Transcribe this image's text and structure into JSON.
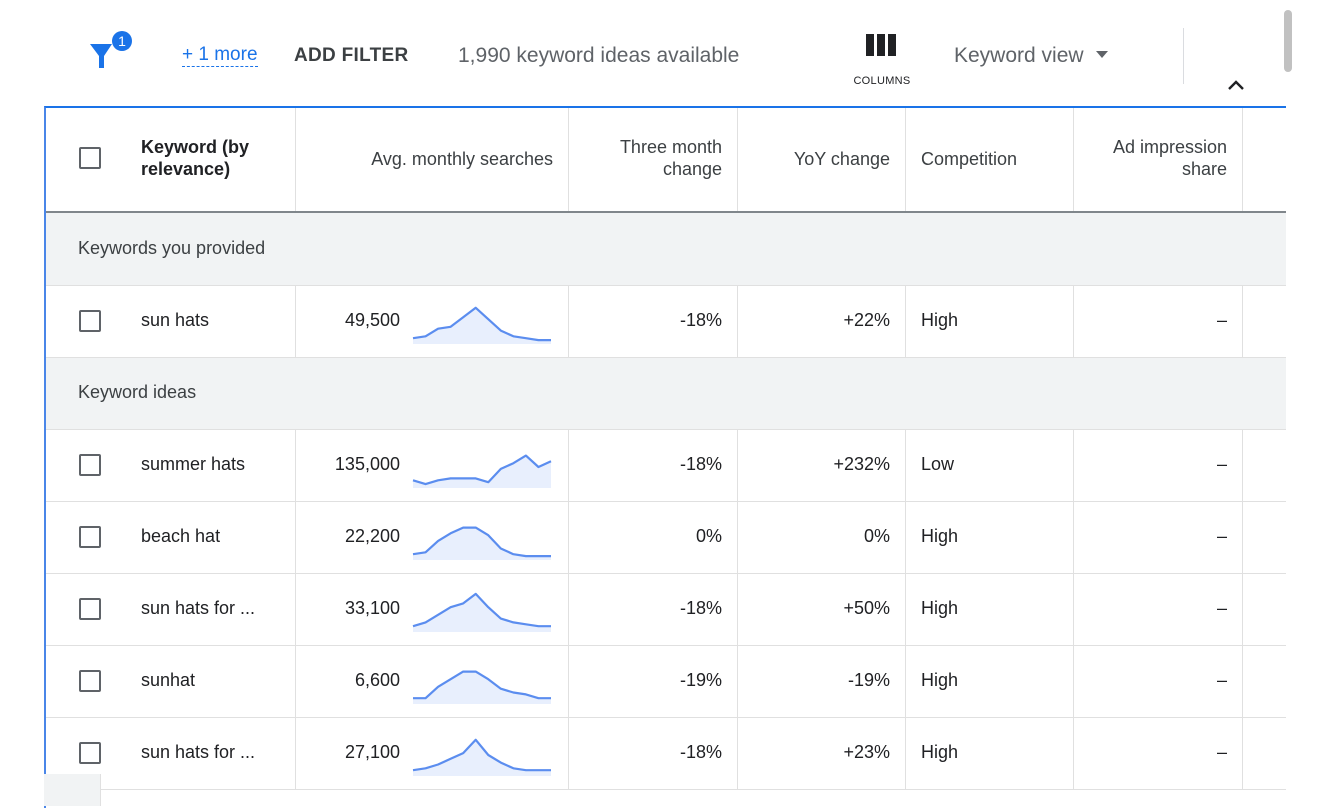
{
  "toolbar": {
    "filter_badge": "1",
    "more_link": "+ 1 more",
    "add_filter": "ADD FILTER",
    "ideas_count": "1,990 keyword ideas available",
    "columns_label": "COLUMNS",
    "view_label": "Keyword view"
  },
  "header": {
    "keyword": "Keyword (by relevance)",
    "keyword_line1": "Keyword (by",
    "keyword_line2": "relevance)",
    "avg_searches": "Avg. monthly searches",
    "three_month_line1": "Three month",
    "three_month_line2": "change",
    "yoy": "YoY change",
    "competition": "Competition",
    "ad_impression_line1": "Ad impression",
    "ad_impression_line2": "share"
  },
  "sections": {
    "provided": "Keywords you provided",
    "ideas": "Keyword ideas"
  },
  "rows": [
    {
      "keyword": "sun hats",
      "searches": "49,500",
      "three_month": "-18%",
      "yoy": "+22%",
      "competition": "High",
      "ad_share": "–",
      "trend": [
        1,
        1.5,
        3.5,
        4,
        6.5,
        9,
        6,
        3,
        1.5,
        1,
        0.5,
        0.5
      ]
    },
    {
      "keyword": "summer hats",
      "searches": "135,000",
      "three_month": "-18%",
      "yoy": "+232%",
      "competition": "Low",
      "ad_share": "–",
      "trend": [
        1.5,
        0.5,
        1.5,
        2,
        2,
        2,
        1,
        4.5,
        6,
        8,
        5,
        6.5
      ]
    },
    {
      "keyword": "beach hat",
      "searches": "22,200",
      "three_month": "0%",
      "yoy": "0%",
      "competition": "High",
      "ad_share": "–",
      "trend": [
        1,
        1.5,
        4.5,
        6.5,
        8,
        8,
        6,
        2.5,
        1,
        0.5,
        0.5,
        0.5
      ]
    },
    {
      "keyword": "sun hats for ...",
      "searches": "33,100",
      "three_month": "-18%",
      "yoy": "+50%",
      "competition": "High",
      "ad_share": "–",
      "trend": [
        1,
        2,
        4,
        6,
        7,
        9.5,
        6,
        3,
        2,
        1.5,
        1,
        1
      ]
    },
    {
      "keyword": "sunhat",
      "searches": "6,600",
      "three_month": "-19%",
      "yoy": "-19%",
      "competition": "High",
      "ad_share": "–",
      "trend": [
        1,
        1,
        4,
        6,
        8,
        8,
        6,
        3.5,
        2.5,
        2,
        1,
        1
      ]
    },
    {
      "keyword": "sun hats for ...",
      "searches": "27,100",
      "three_month": "-18%",
      "yoy": "+23%",
      "competition": "High",
      "ad_share": "–",
      "trend": [
        1,
        1.5,
        2.5,
        4,
        5.5,
        9,
        5,
        3,
        1.5,
        1,
        1,
        1
      ]
    }
  ],
  "colors": {
    "accent": "#1a73e8",
    "spark_line": "#5b8def",
    "spark_fill": "#e8effd",
    "section_bg": "#f1f3f4"
  },
  "icons": {
    "filter": "filter-funnel-icon",
    "columns": "columns-icon",
    "dropdown": "caret-down-icon",
    "collapse": "chevron-up-icon"
  }
}
